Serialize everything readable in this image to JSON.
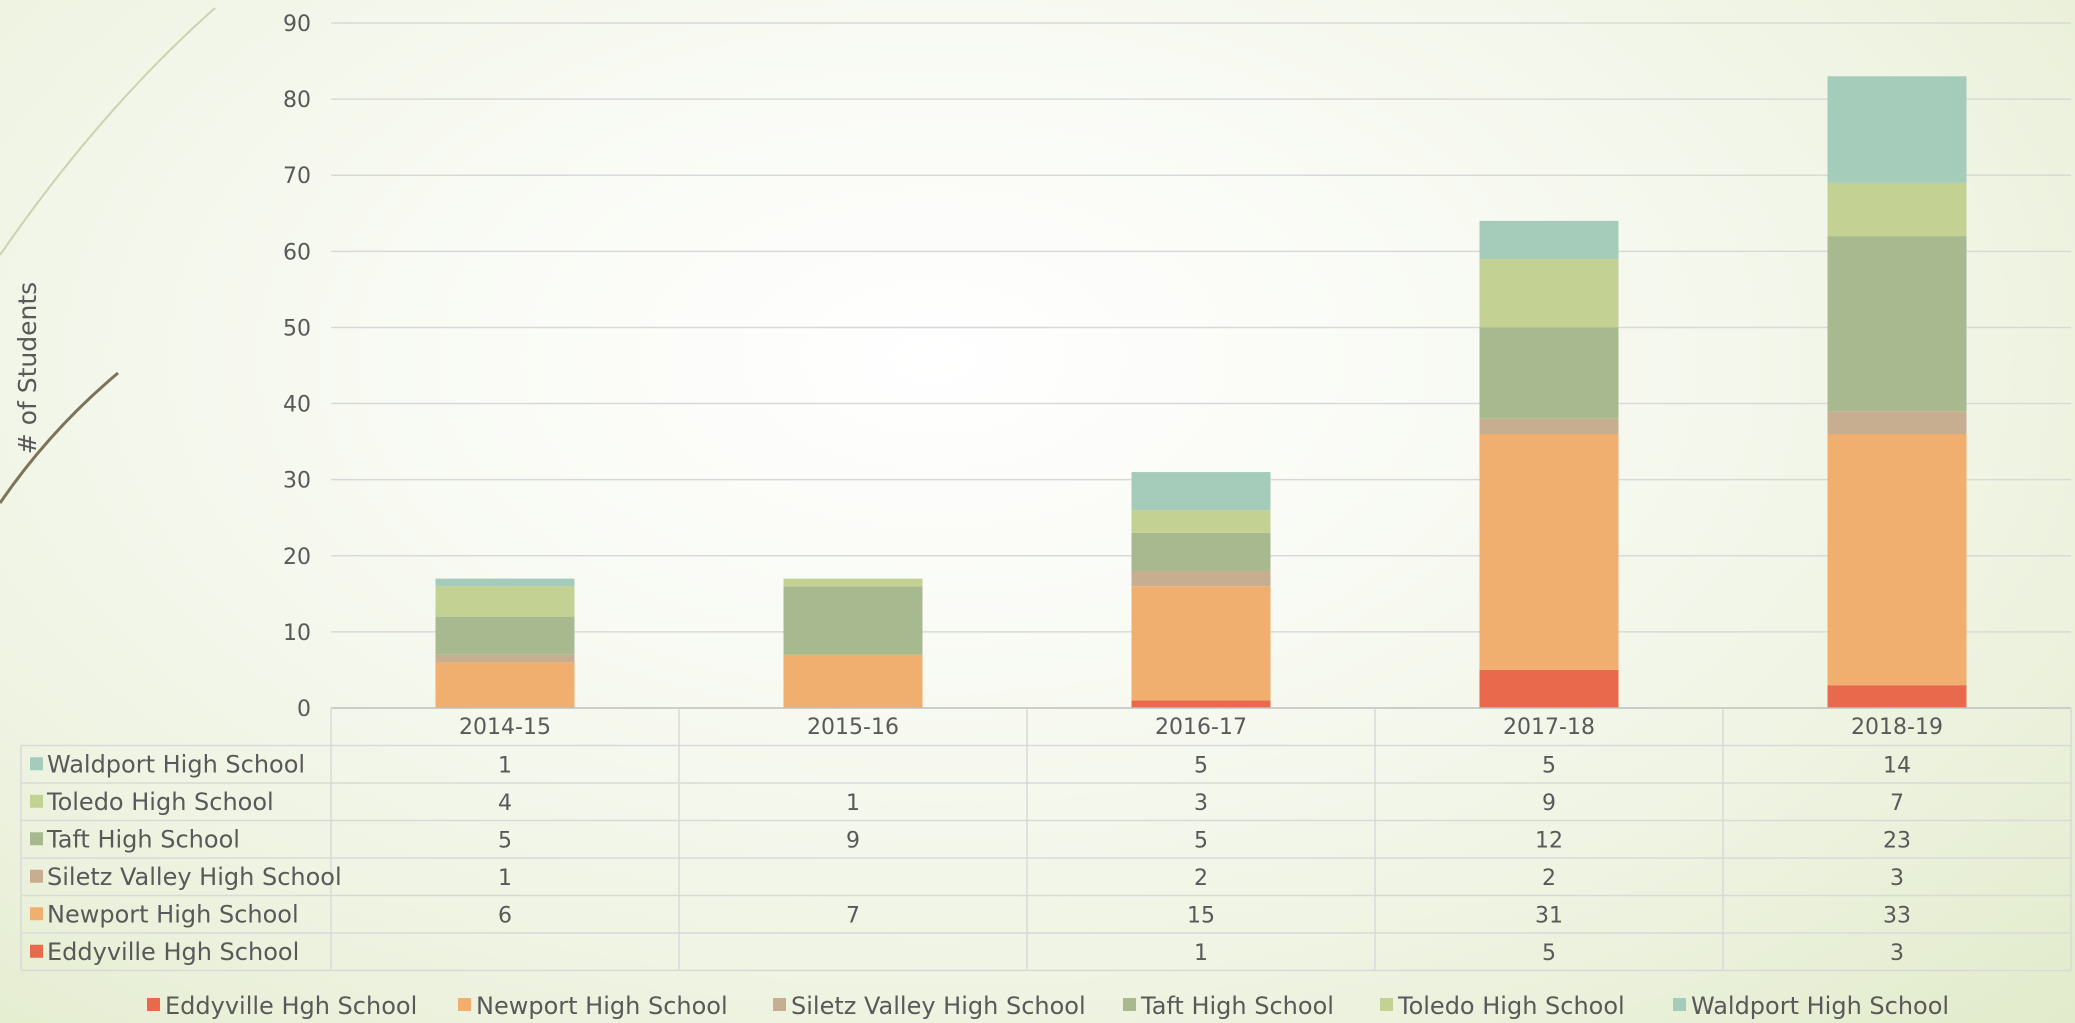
{
  "chart_data": {
    "type": "bar",
    "stacked": true,
    "ylabel": "# of Students",
    "ylim": [
      0,
      90
    ],
    "ytick_step": 10,
    "grid": true,
    "legend_position": "bottom",
    "categories": [
      "2014-15",
      "2015-16",
      "2016-17",
      "2017-18",
      "2018-19"
    ],
    "series": [
      {
        "name": "Eddyville Hgh School",
        "color": "#E9694C",
        "values": [
          null,
          null,
          1,
          5,
          3
        ]
      },
      {
        "name": "Newport High School",
        "color": "#F0AE6F",
        "values": [
          6,
          7,
          15,
          31,
          33
        ]
      },
      {
        "name": "Siletz Valley High School",
        "color": "#C7AE91",
        "values": [
          1,
          null,
          2,
          2,
          3
        ]
      },
      {
        "name": "Taft High School",
        "color": "#A9B98F",
        "values": [
          5,
          9,
          5,
          12,
          23
        ]
      },
      {
        "name": "Toledo High School",
        "color": "#C3D192",
        "values": [
          4,
          1,
          3,
          9,
          7
        ]
      },
      {
        "name": "Waldport High School",
        "color": "#A5CBBB",
        "values": [
          1,
          null,
          5,
          5,
          14
        ]
      }
    ]
  }
}
